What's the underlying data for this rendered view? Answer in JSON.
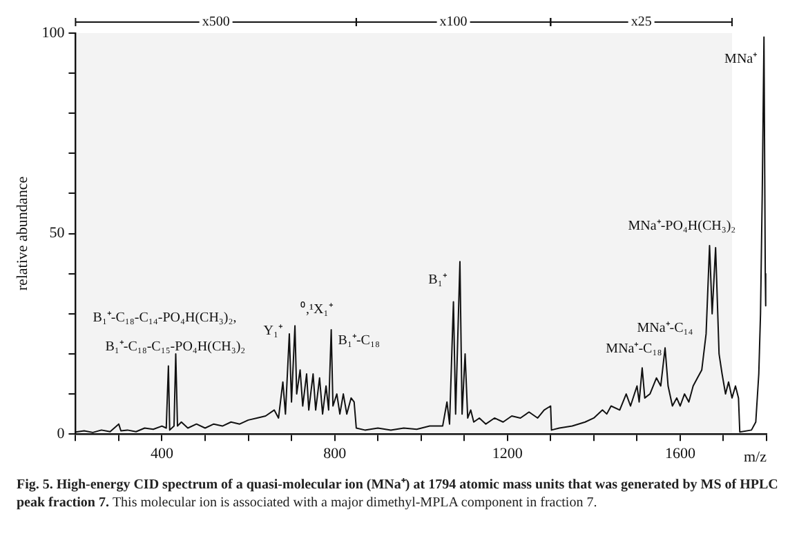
{
  "chart_data": {
    "type": "line",
    "xlabel": "m/z",
    "ylabel": "relative abundance",
    "x": [
      200,
      220,
      240,
      260,
      280,
      300,
      305,
      320,
      340,
      360,
      380,
      400,
      410,
      415,
      418,
      428,
      432,
      436,
      445,
      460,
      480,
      500,
      520,
      540,
      560,
      580,
      600,
      620,
      640,
      660,
      670,
      680,
      686,
      695,
      700,
      708,
      712,
      720,
      726,
      735,
      740,
      750,
      756,
      765,
      772,
      780,
      786,
      792,
      796,
      805,
      812,
      820,
      828,
      838,
      845,
      850,
      870,
      900,
      930,
      960,
      990,
      1020,
      1050,
      1060,
      1066,
      1075,
      1080,
      1090,
      1095,
      1102,
      1108,
      1115,
      1122,
      1135,
      1150,
      1170,
      1190,
      1210,
      1230,
      1250,
      1270,
      1285,
      1300,
      1302,
      1320,
      1350,
      1380,
      1400,
      1420,
      1430,
      1440,
      1460,
      1475,
      1485,
      1500,
      1505,
      1512,
      1518,
      1530,
      1545,
      1555,
      1565,
      1572,
      1582,
      1592,
      1600,
      1610,
      1620,
      1630,
      1640,
      1650,
      1660,
      1668,
      1674,
      1682,
      1690,
      1697,
      1705,
      1712,
      1720,
      1728,
      1735,
      1738,
      1765,
      1775,
      1782,
      1786,
      1790,
      1794,
      1797,
      1798
    ],
    "series": [
      {
        "color": "#111111",
        "values": [
          0.5,
          0.8,
          0.4,
          1,
          0.6,
          2.5,
          0.8,
          1,
          0.6,
          1.5,
          1.2,
          2,
          1.5,
          17,
          1,
          2,
          20,
          2,
          3,
          1.5,
          2.5,
          1.5,
          2.5,
          2,
          3,
          2.5,
          3.5,
          4,
          4.5,
          6,
          4,
          13,
          5,
          25,
          8,
          27,
          10,
          16,
          7,
          15,
          6,
          15,
          6,
          14,
          5,
          12,
          6,
          26,
          7,
          10,
          5,
          10,
          5,
          9,
          8,
          1.5,
          1,
          1.5,
          1,
          1.5,
          1.2,
          2,
          2,
          8,
          2.5,
          33,
          5,
          43,
          5,
          20,
          4,
          6,
          3,
          4,
          2.5,
          4,
          3,
          4.5,
          4,
          5.5,
          4,
          6,
          7,
          1,
          1.5,
          2,
          3,
          4,
          6,
          5,
          7,
          6,
          10,
          7,
          12,
          8,
          16.5,
          9,
          10,
          14,
          12,
          21.5,
          12,
          7,
          9,
          7,
          10,
          8,
          12,
          14,
          16,
          25,
          47,
          30,
          46.5,
          20,
          15,
          10,
          13,
          9,
          12,
          9,
          0.5,
          1,
          3,
          15,
          30,
          60,
          99,
          40,
          32
        ]
      }
    ],
    "xlim": [
      200,
      1800
    ],
    "xticks": [
      {
        "value": 200,
        "label": null
      },
      {
        "value": 300,
        "label": null
      },
      400,
      {
        "value": 500,
        "label": null
      },
      {
        "value": 600,
        "label": null
      },
      {
        "value": 700,
        "label": null
      },
      800,
      {
        "value": 900,
        "label": null
      },
      {
        "value": 1000,
        "label": null
      },
      {
        "value": 1100,
        "label": null
      },
      1200,
      {
        "value": 1300,
        "label": null
      },
      {
        "value": 1400,
        "label": null
      },
      {
        "value": 1500,
        "label": null
      },
      1600,
      {
        "value": 1700,
        "label": null
      },
      {
        "value": 1800,
        "label": null
      }
    ],
    "ylim": [
      0,
      100
    ],
    "yticks": [
      0,
      {
        "value": 10,
        "label": null
      },
      {
        "value": 20,
        "label": null
      },
      {
        "value": 30,
        "label": null
      },
      {
        "value": 40,
        "label": null
      },
      50,
      {
        "value": 60,
        "label": null
      },
      {
        "value": 70,
        "label": null
      },
      {
        "value": 80,
        "label": null
      },
      {
        "value": 90,
        "label": null
      },
      100
    ],
    "bands": [
      {
        "axis": "x",
        "from": 200,
        "to": 850,
        "label": "x500",
        "color": "#111111"
      },
      {
        "axis": "x",
        "from": 850,
        "to": 1300,
        "label": "x100",
        "color": "#111111"
      },
      {
        "axis": "x",
        "from": 1300,
        "to": 1720,
        "label": "x25",
        "color": "#111111"
      }
    ],
    "annotations": [
      {
        "text": "B₁⁺-C₁₈-C₁₄-PO₄H(CH₃)₂,",
        "x": 432,
        "y": 20
      },
      {
        "text": "B₁⁺-C₁₈-C₁₅-PO₄H(CH₃)₂",
        "x": 415,
        "y": 17
      },
      {
        "text": "Y₁⁺",
        "x": 695,
        "y": 25
      },
      {
        "text": "⁰,¹X₁⁺",
        "x": 708,
        "y": 27
      },
      {
        "text": "B₁⁺-C₁₈",
        "x": 792,
        "y": 26
      },
      {
        "text": "B₁⁺",
        "x": 1075,
        "y": 33
      },
      {
        "text": "MNa⁺-C₁₈",
        "x": 1512,
        "y": 16.5
      },
      {
        "text": "MNa⁺-C₁₄",
        "x": 1565,
        "y": 21.5
      },
      {
        "text": "MNa⁺-PO₄H(CH₃)₂",
        "x": 1668,
        "y": 47
      },
      {
        "text": "MNa⁺",
        "x": 1794,
        "y": 99
      },
      "Fig. 5. High-energy CID spectrum of a quasi-molecular ion (MNa⁺) at 1794 atomic mass units that was generated by MS of HPLC peak fraction 7.",
      "This molecular ion is associated with a major dimethyl-MPLA component in fraction 7."
    ],
    "grid": false,
    "legend": false,
    "marker": "none",
    "line_style": "solid"
  }
}
